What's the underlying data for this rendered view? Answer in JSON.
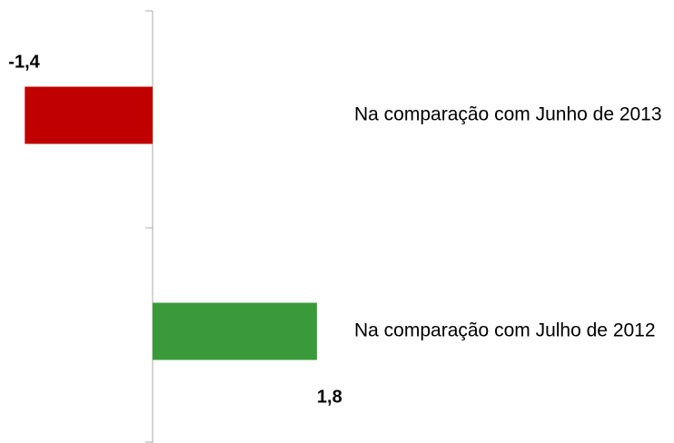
{
  "chart_data": {
    "type": "barh",
    "categories": [
      "Na comparação com Junho de 2013",
      "Na comparação com Julho de 2012"
    ],
    "values": [
      -1.4,
      1.8
    ],
    "value_labels": [
      "-1,4",
      "1,8"
    ],
    "colors": [
      "#c00000",
      "#3a9a3a"
    ]
  }
}
